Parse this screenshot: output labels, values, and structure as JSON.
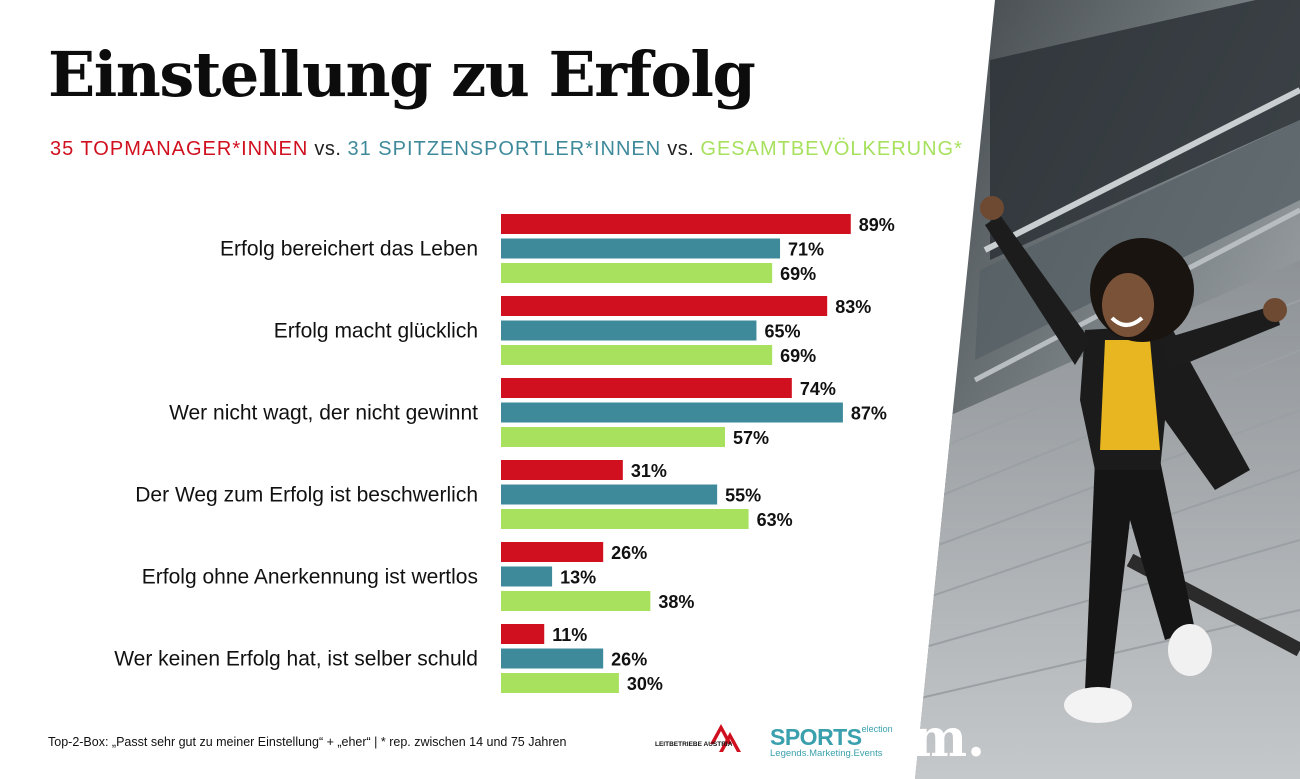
{
  "title": "Einstellung zu Erfolg",
  "subtitle": {
    "group1": "35 TOPMANAGER*INNEN",
    "sep1": " vs. ",
    "group2": "31 SPITZENSPORTLER*INNEN",
    "sep2": " vs. ",
    "group3": "GESAMTBEVÖLKERUNG*"
  },
  "colors": {
    "manager": "#d0101f",
    "sportler": "#3e8a9b",
    "bevoelkerung": "#a7e15e"
  },
  "chart_data": {
    "type": "bar",
    "orientation": "horizontal",
    "categories": [
      "Erfolg bereichert das Leben",
      "Erfolg macht glücklich",
      "Wer nicht wagt, der nicht gewinnt",
      "Der Weg zum Erfolg ist beschwerlich",
      "Erfolg ohne Anerkennung ist wertlos",
      "Wer keinen Erfolg hat, ist selber schuld"
    ],
    "series": [
      {
        "name": "35 TOPMANAGER*INNEN",
        "color": "#d0101f",
        "values": [
          89,
          83,
          74,
          31,
          26,
          11
        ]
      },
      {
        "name": "31 SPITZENSPORTLER*INNEN",
        "color": "#3e8a9b",
        "values": [
          71,
          65,
          87,
          55,
          13,
          26
        ]
      },
      {
        "name": "GESAMTBEVÖLKERUNG*",
        "color": "#a7e15e",
        "values": [
          69,
          69,
          57,
          63,
          38,
          30
        ]
      }
    ],
    "value_suffix": "%",
    "xlim": [
      0,
      100
    ],
    "grid": false
  },
  "footer": "Top-2-Box: „Passt sehr gut zu meiner Einstellung“ + „eher“ | * rep. zwischen 14 und 75 Jahren",
  "logos": {
    "leitbetriebe": "LEITBETRIEBE AUSTRIA",
    "sports_main": "SPORTS",
    "sports_sup": "election",
    "sports_tag": "Legends.Marketing.Events",
    "m": "m."
  }
}
